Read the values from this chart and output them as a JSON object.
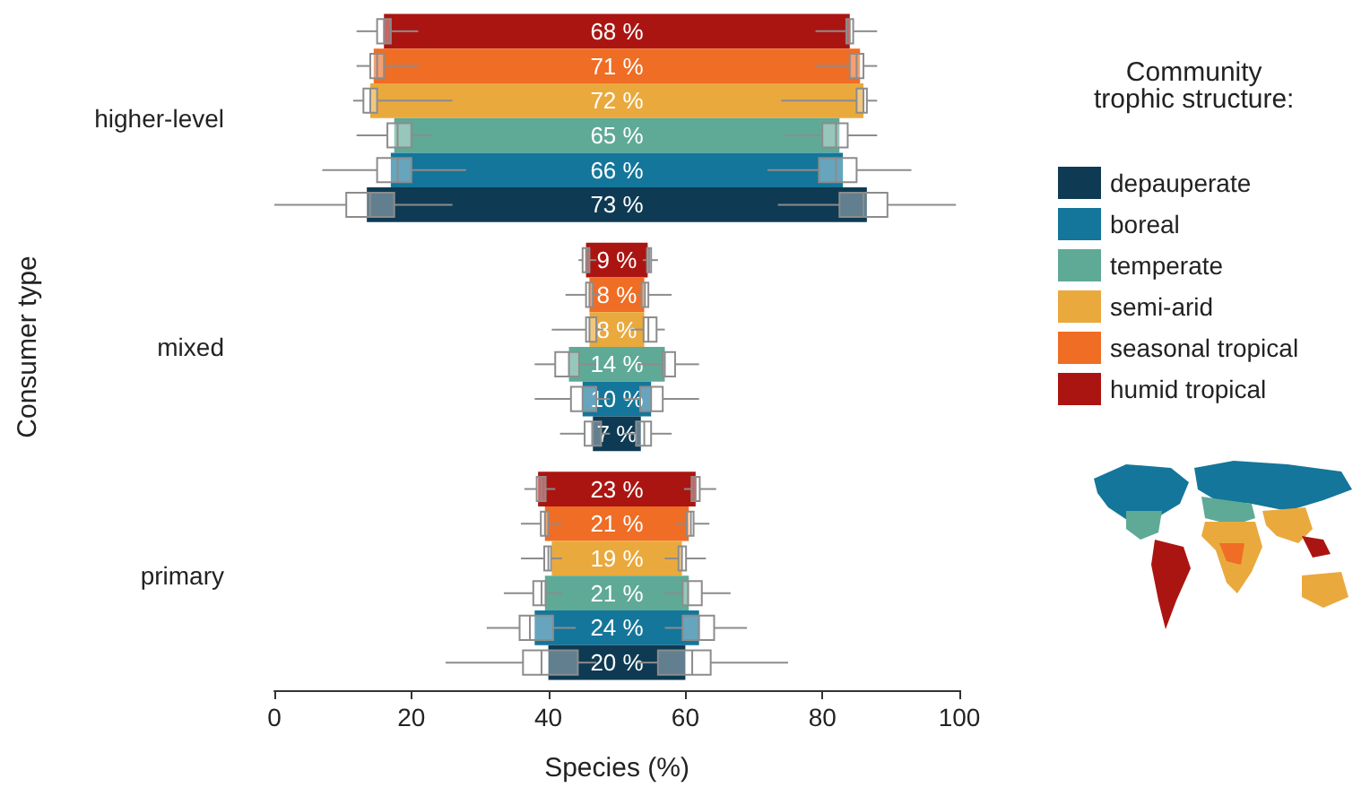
{
  "chart_data": {
    "type": "bar",
    "orientation": "horizontal",
    "xlabel": "Species (%)",
    "ylabel": "Consumer type",
    "legend_title": "Community\ntrophic structure:",
    "legend": "right",
    "grid": false,
    "categories": [
      "higher-level",
      "mixed",
      "primary"
    ],
    "xlim": [
      0,
      100
    ],
    "xticks": [
      0,
      20,
      40,
      60,
      80,
      100
    ],
    "series": [
      {
        "name": "depauperate",
        "color": "#0e3b53",
        "values": [
          73,
          7,
          20
        ],
        "base": [
          13.5,
          46.5,
          40
        ],
        "value_labels": [
          "73 %",
          "7 %",
          "20 %"
        ]
      },
      {
        "name": "boreal",
        "color": "#14769a",
        "values": [
          66,
          10,
          24
        ],
        "base": [
          17,
          45,
          38
        ],
        "value_labels": [
          "66 %",
          "10 %",
          "24 %"
        ]
      },
      {
        "name": "temperate",
        "color": "#5eaa96",
        "values": [
          65,
          14,
          21
        ],
        "base": [
          17.5,
          43,
          39.5
        ],
        "value_labels": [
          "65 %",
          "14 %",
          "21 %"
        ]
      },
      {
        "name": "semi-arid",
        "color": "#eaa93d",
        "values": [
          72,
          8,
          19
        ],
        "base": [
          14,
          46,
          40.5
        ],
        "value_labels": [
          "72 %",
          "8 %",
          "19 %"
        ]
      },
      {
        "name": "seasonal tropical",
        "color": "#ef6d24",
        "values": [
          71,
          8,
          21
        ],
        "base": [
          14.5,
          46,
          39.5
        ],
        "value_labels": [
          "71 %",
          "8 %",
          "21 %"
        ]
      },
      {
        "name": "humid tropical",
        "color": "#ab1511",
        "values": [
          68,
          9,
          23
        ],
        "base": [
          16,
          45.5,
          38.5
        ],
        "value_labels": [
          "68 %",
          "9 %",
          "23 %"
        ]
      },
      {
        "type": "box",
        "color": "#8c8c8c",
        "boxes": [
          {
            "low": 0,
            "q1": 10.5,
            "median": 14,
            "q3": 17.5,
            "high": 26
          },
          {
            "low": 41.7,
            "q1": 45.3,
            "median": 46.4,
            "q3": 47.7,
            "high": 49
          },
          {
            "low": 25,
            "q1": 36.3,
            "median": 39,
            "q3": 44.3,
            "high": 47
          }
        ]
      },
      {
        "type": "box",
        "color": "#8c8c8c",
        "boxes": [
          {
            "low": 73.5,
            "q1": 82.5,
            "median": 86,
            "q3": 89.5,
            "high": 99.5
          },
          {
            "low": 51,
            "q1": 52.8,
            "median": 54,
            "q3": 55,
            "high": 58
          },
          {
            "low": 53,
            "q1": 56,
            "median": 61,
            "q3": 63.7,
            "high": 75
          }
        ]
      },
      {
        "type": "box",
        "color": "#8c8c8c",
        "boxes": [
          {
            "low": 7,
            "q1": 15,
            "median": 18,
            "q3": 20,
            "high": 28
          },
          {
            "low": 38,
            "q1": 43.3,
            "median": 45,
            "q3": 47,
            "high": 49
          },
          {
            "low": 31,
            "q1": 35.8,
            "median": 37.3,
            "q3": 40.7,
            "high": 44
          }
        ]
      },
      {
        "type": "box",
        "color": "#8c8c8c",
        "boxes": [
          {
            "low": 72,
            "q1": 79.5,
            "median": 82,
            "q3": 85,
            "high": 93
          },
          {
            "low": 51,
            "q1": 53.4,
            "median": 55,
            "q3": 56.7,
            "high": 62
          },
          {
            "low": 57,
            "q1": 59.6,
            "median": 62,
            "q3": 64.2,
            "high": 69
          }
        ]
      },
      {
        "type": "box",
        "color": "#8c8c8c",
        "boxes": [
          {
            "low": 12,
            "q1": 16.5,
            "median": 18,
            "q3": 20,
            "high": 23
          },
          {
            "low": 38,
            "q1": 41,
            "median": 43,
            "q3": 44.5,
            "high": 47
          },
          {
            "low": 33.5,
            "q1": 37.8,
            "median": 39,
            "q3": 39.6,
            "high": 42
          }
        ]
      },
      {
        "type": "box",
        "color": "#8c8c8c",
        "boxes": [
          {
            "low": 74.5,
            "q1": 80,
            "median": 82,
            "q3": 83.7,
            "high": 88
          },
          {
            "low": 53,
            "q1": 56.7,
            "median": 57,
            "q3": 58.5,
            "high": 62
          },
          {
            "low": 57,
            "q1": 59.6,
            "median": 60.4,
            "q3": 62.4,
            "high": 66.6
          }
        ]
      },
      {
        "type": "box",
        "color": "#8c8c8c",
        "boxes": [
          {
            "low": 11.5,
            "q1": 13,
            "median": 14,
            "q3": 15,
            "high": 26
          },
          {
            "low": 40.5,
            "q1": 45.5,
            "median": 46,
            "q3": 47,
            "high": 48
          },
          {
            "low": 36,
            "q1": 39.4,
            "median": 40,
            "q3": 40.4,
            "high": 42
          }
        ]
      },
      {
        "type": "box",
        "color": "#8c8c8c",
        "boxes": [
          {
            "low": 74,
            "q1": 85,
            "median": 86,
            "q3": 86.5,
            "high": 88
          },
          {
            "low": 52,
            "q1": 53.9,
            "median": 54.6,
            "q3": 55.8,
            "high": 57
          },
          {
            "low": 57,
            "q1": 59,
            "median": 59.5,
            "q3": 60.1,
            "high": 63
          }
        ]
      },
      {
        "type": "box",
        "color": "#8c8c8c",
        "boxes": [
          {
            "low": 12,
            "q1": 14,
            "median": 15,
            "q3": 16,
            "high": 21
          },
          {
            "low": 42.5,
            "q1": 45.5,
            "median": 46,
            "q3": 46.5,
            "high": 47.5
          },
          {
            "low": 36,
            "q1": 38.9,
            "median": 39.5,
            "q3": 40,
            "high": 42
          }
        ]
      },
      {
        "type": "box",
        "color": "#8c8c8c",
        "boxes": [
          {
            "low": 79,
            "q1": 84,
            "median": 85,
            "q3": 86,
            "high": 88
          },
          {
            "low": 53,
            "q1": 53.6,
            "median": 54.1,
            "q3": 54.6,
            "high": 58
          },
          {
            "low": 58.5,
            "q1": 60.2,
            "median": 60.8,
            "q3": 61.2,
            "high": 63.5
          }
        ]
      },
      {
        "type": "box",
        "color": "#8c8c8c",
        "boxes": [
          {
            "low": 12,
            "q1": 15,
            "median": 16,
            "q3": 17,
            "high": 21
          },
          {
            "low": 44.4,
            "q1": 45,
            "median": 45.5,
            "q3": 46,
            "high": 47
          },
          {
            "low": 36.5,
            "q1": 38.3,
            "median": 39,
            "q3": 39.6,
            "high": 41
          }
        ]
      },
      {
        "type": "box",
        "color": "#8c8c8c",
        "boxes": [
          {
            "low": 79,
            "q1": 83.5,
            "median": 84,
            "q3": 84.5,
            "high": 88
          },
          {
            "low": 53.8,
            "q1": 54.4,
            "median": 54.7,
            "q3": 55,
            "high": 56
          },
          {
            "low": 59.8,
            "q1": 60.9,
            "median": 61.5,
            "q3": 62.1,
            "high": 64.5
          }
        ]
      }
    ]
  }
}
